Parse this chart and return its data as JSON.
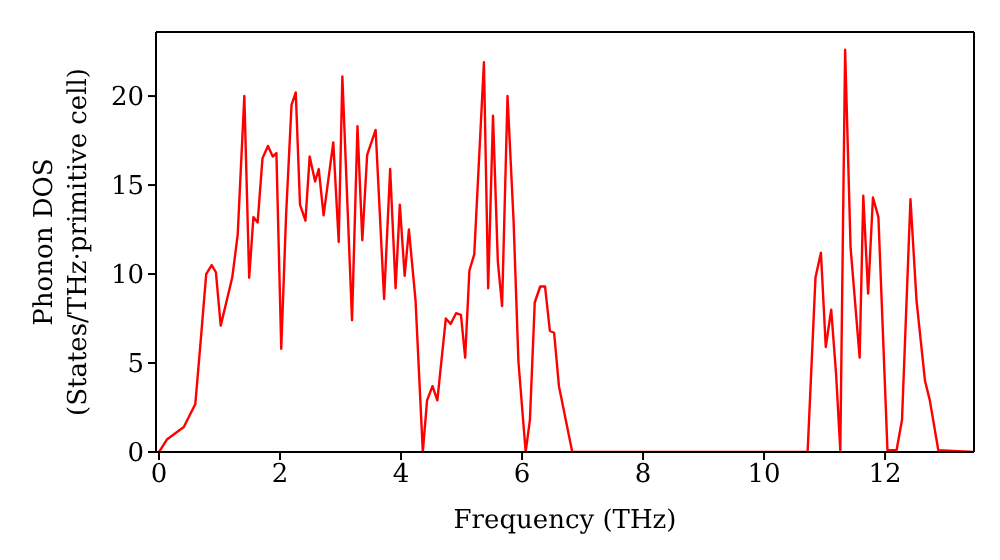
{
  "chart_data": {
    "type": "line",
    "xlabel": "Frequency (THz)",
    "ylabel": "Phonon DOS\n(States/THz·primitive cell)",
    "xlim": [
      -0.05,
      13.47
    ],
    "ylim": [
      0,
      23.6
    ],
    "xticks": [
      0,
      2,
      4,
      6,
      8,
      10,
      12
    ],
    "yticks": [
      0,
      5,
      10,
      15,
      20
    ],
    "grid": false,
    "legend": false,
    "marker": "none",
    "line_style": "solid",
    "x": [
      0,
      0.13,
      0.41,
      0.6,
      0.69,
      0.78,
      0.87,
      0.94,
      1.02,
      1.21,
      1.3,
      1.41,
      1.49,
      1.56,
      1.63,
      1.71,
      1.8,
      1.88,
      1.94,
      2.02,
      2.1,
      2.19,
      2.26,
      2.33,
      2.42,
      2.49,
      2.58,
      2.64,
      2.72,
      2.88,
      2.97,
      3.03,
      3.19,
      3.28,
      3.36,
      3.44,
      3.58,
      3.72,
      3.82,
      3.91,
      3.98,
      4.06,
      4.13,
      4.24,
      4.36,
      4.43,
      4.52,
      4.6,
      4.74,
      4.82,
      4.91,
      4.99,
      5.06,
      5.13,
      5.21,
      5.37,
      5.44,
      5.52,
      5.6,
      5.67,
      5.76,
      5.86,
      5.94,
      6.06,
      6.13,
      6.21,
      6.3,
      6.38,
      6.46,
      6.53,
      6.61,
      6.83,
      10.72,
      10.85,
      10.94,
      11.02,
      11.11,
      11.19,
      11.26,
      11.34,
      11.43,
      11.58,
      11.64,
      11.72,
      11.8,
      11.89,
      12.04,
      12.19,
      12.28,
      12.42,
      12.52,
      12.66,
      12.74,
      12.88,
      13.47
    ],
    "series": [
      {
        "color": "#ff0000",
        "values": [
          0,
          0.7,
          1.4,
          2.7,
          6.3,
          10.0,
          10.5,
          10.1,
          7.1,
          9.8,
          12.2,
          20.0,
          9.8,
          13.2,
          12.9,
          16.5,
          17.2,
          16.6,
          16.8,
          5.8,
          13.3,
          19.5,
          20.2,
          13.9,
          13.0,
          16.6,
          15.2,
          15.9,
          13.3,
          17.4,
          11.8,
          21.1,
          7.4,
          18.3,
          11.9,
          16.7,
          18.1,
          8.6,
          15.9,
          9.2,
          13.9,
          9.9,
          12.5,
          8.5,
          0,
          2.9,
          3.7,
          2.9,
          7.5,
          7.2,
          7.8,
          7.7,
          5.3,
          10.2,
          11.1,
          21.9,
          9.2,
          18.9,
          10.7,
          8.2,
          20.0,
          13.0,
          5.1,
          0,
          1.8,
          8.4,
          9.3,
          9.3,
          6.8,
          6.7,
          3.7,
          0,
          0,
          9.8,
          11.2,
          5.9,
          8.0,
          4.4,
          0.1,
          22.6,
          11.5,
          5.3,
          14.4,
          8.9,
          14.3,
          13.2,
          0.1,
          0.1,
          1.8,
          14.2,
          8.5,
          4.0,
          2.9,
          0.1,
          0
        ]
      }
    ]
  }
}
